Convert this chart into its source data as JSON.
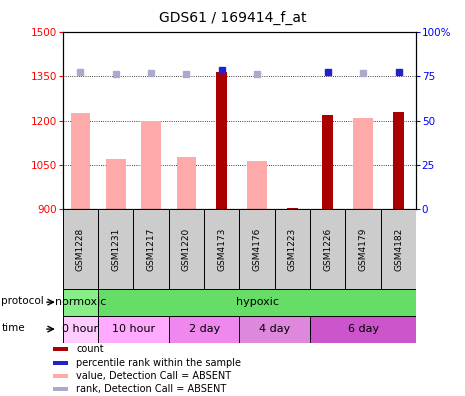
{
  "title": "GDS61 / 169414_f_at",
  "samples": [
    "GSM1228",
    "GSM1231",
    "GSM1217",
    "GSM1220",
    "GSM4173",
    "GSM4176",
    "GSM1223",
    "GSM1226",
    "GSM4179",
    "GSM4182"
  ],
  "values_absent": [
    1225,
    1070,
    1200,
    1077,
    null,
    1065,
    null,
    null,
    1210,
    null
  ],
  "values_count": [
    null,
    null,
    null,
    null,
    1365,
    null,
    905,
    1220,
    null,
    1230
  ],
  "ranks_absent": [
    1365,
    1358,
    1362,
    1358,
    null,
    1356,
    null,
    null,
    1362,
    null
  ],
  "ranks_count_blue": [
    null,
    null,
    null,
    null,
    1370,
    null,
    null,
    1365,
    null,
    1365
  ],
  "ylim_left": [
    900,
    1500
  ],
  "ylim_right": [
    0,
    100
  ],
  "yticks_left": [
    900,
    1050,
    1200,
    1350,
    1500
  ],
  "yticks_right": [
    0,
    25,
    50,
    75,
    100
  ],
  "color_count_bar": "#aa0000",
  "color_absent_bar": "#ffaaaa",
  "color_rank_absent": "#aaaacc",
  "color_rank_count": "#2222cc",
  "protocol_groups": [
    {
      "label": "normoxic",
      "start": 0,
      "end": 1,
      "color": "#88ee88"
    },
    {
      "label": "hypoxic",
      "start": 1,
      "end": 10,
      "color": "#66dd66"
    }
  ],
  "time_groups": [
    {
      "label": "0 hour",
      "start": 0,
      "end": 1,
      "color": "#ffccff"
    },
    {
      "label": "10 hour",
      "start": 1,
      "end": 3,
      "color": "#ffaaff"
    },
    {
      "label": "2 day",
      "start": 3,
      "end": 5,
      "color": "#ee88ee"
    },
    {
      "label": "4 day",
      "start": 5,
      "end": 7,
      "color": "#dd88dd"
    },
    {
      "label": "6 day",
      "start": 7,
      "end": 10,
      "color": "#cc55cc"
    }
  ],
  "legend_items": [
    {
      "label": "count",
      "color": "#aa0000"
    },
    {
      "label": "percentile rank within the sample",
      "color": "#2222cc"
    },
    {
      "label": "value, Detection Call = ABSENT",
      "color": "#ffaaaa"
    },
    {
      "label": "rank, Detection Call = ABSENT",
      "color": "#aaaacc"
    }
  ]
}
